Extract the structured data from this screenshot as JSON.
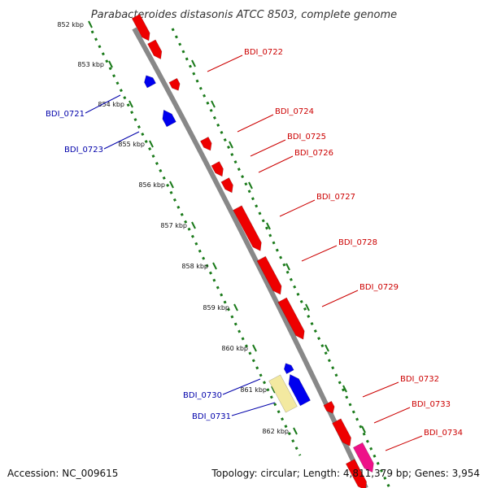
{
  "title": "Parabacteroides distasonis ATCC 8503, complete genome",
  "footer": {
    "accession": "Accession: NC_009615",
    "summary": "Topology: circular; Length: 4,811,379 bp; Genes: 3,954"
  },
  "colors": {
    "forward_gene": "#ee0000",
    "reverse_gene": "#0000ee",
    "pale_gene": "#f3e9a0",
    "pink_gene": "#ee1188",
    "backbone": "#888888",
    "tick": "#1a7a1a",
    "forward_label": "#cc0000",
    "reverse_label": "#0000aa"
  },
  "ticks": [
    "852 kbp",
    "853 kbp",
    "854 kbp",
    "855 kbp",
    "856 kbp",
    "857 kbp",
    "858 kbp",
    "859 kbp",
    "860 kbp",
    "861 kbp",
    "862 kbp"
  ],
  "gene_labels": {
    "forward": [
      "BDI_0722",
      "BDI_0724",
      "BDI_0725",
      "BDI_0726",
      "BDI_0727",
      "BDI_0728",
      "BDI_0729",
      "BDI_0732",
      "BDI_0733",
      "BDI_0734"
    ],
    "reverse": [
      "BDI_0721",
      "BDI_0723",
      "BDI_0730",
      "BDI_0731"
    ]
  }
}
